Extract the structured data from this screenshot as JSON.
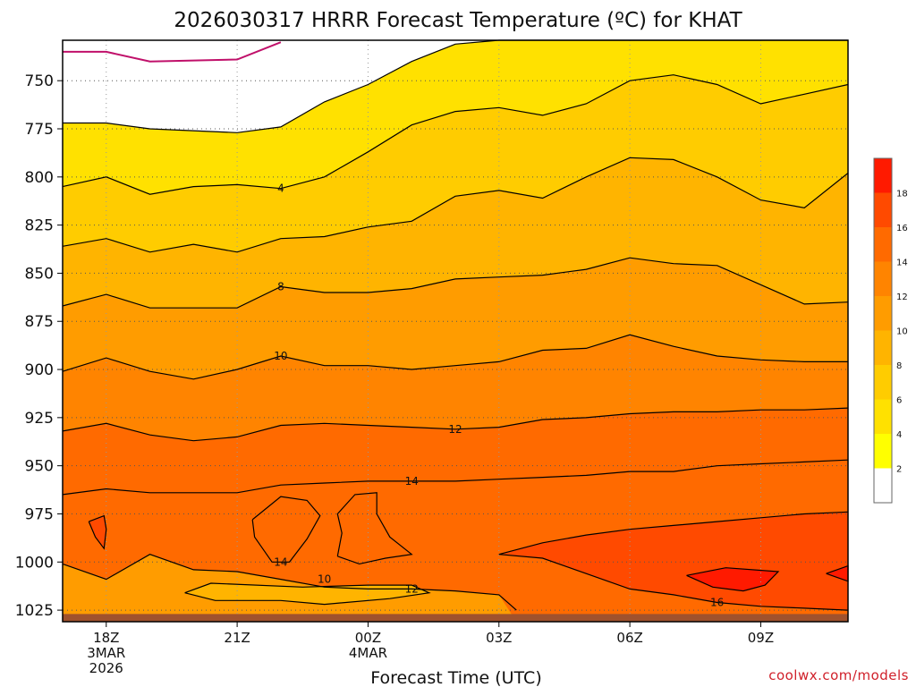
{
  "chart_data": {
    "type": "heatmap",
    "title": "2026030317 HRRR Forecast Temperature (ºC) for KHAT",
    "xlabel": "Forecast Time (UTC)",
    "ylabel": "",
    "credit": "coolwx.com/models",
    "x_ticks": [
      {
        "hour": 0,
        "lines": [
          "18Z",
          "3MAR",
          "2026"
        ]
      },
      {
        "hour": 3,
        "lines": [
          "21Z"
        ]
      },
      {
        "hour": 6,
        "lines": [
          "00Z",
          "4MAR"
        ]
      },
      {
        "hour": 9,
        "lines": [
          "03Z"
        ]
      },
      {
        "hour": 12,
        "lines": [
          "06Z"
        ]
      },
      {
        "hour": 15,
        "lines": [
          "09Z"
        ]
      }
    ],
    "x_range_hours": [
      -1,
      17
    ],
    "y_ticks": [
      750,
      775,
      800,
      825,
      850,
      875,
      900,
      925,
      950,
      975,
      1000,
      1025
    ],
    "y_range_hpa": [
      729,
      1031
    ],
    "surface_pressure_hpa": 1027,
    "grid": true,
    "colorbar": {
      "levels": [
        2,
        4,
        6,
        8,
        10,
        12,
        14,
        16,
        18
      ],
      "colors": [
        "#ffffff",
        "#ffff00",
        "#ffe100",
        "#ffcc00",
        "#ffb400",
        "#ff9c00",
        "#ff8400",
        "#ff6a00",
        "#ff4a00",
        "#ff1a00"
      ],
      "tick_labels": [
        "2",
        "4",
        "6",
        "8",
        "10",
        "12",
        "14",
        "16",
        "18"
      ]
    },
    "purple_contour": {
      "value": 0,
      "color": "#c0106a",
      "points": [
        [
          -1,
          735
        ],
        [
          0,
          735
        ],
        [
          1,
          740
        ],
        [
          3,
          739
        ],
        [
          4,
          730
        ]
      ]
    },
    "isotherms": [
      {
        "value": 2,
        "label": "",
        "points": [
          [
            -1,
            772
          ],
          [
            0,
            772
          ],
          [
            1,
            775
          ],
          [
            3,
            777
          ],
          [
            4,
            774
          ],
          [
            5,
            761
          ],
          [
            6,
            752
          ],
          [
            7,
            740
          ],
          [
            8,
            731
          ],
          [
            9,
            729
          ],
          [
            16,
            729
          ],
          [
            17,
            729
          ]
        ]
      },
      {
        "value": 4,
        "label": "4",
        "points": [
          [
            -1,
            805
          ],
          [
            0,
            800
          ],
          [
            1,
            809
          ],
          [
            2,
            805
          ],
          [
            3,
            804
          ],
          [
            4,
            806
          ],
          [
            5,
            800
          ],
          [
            6,
            787
          ],
          [
            7,
            773
          ],
          [
            8,
            766
          ],
          [
            9,
            764
          ],
          [
            10,
            768
          ],
          [
            11,
            762
          ],
          [
            12,
            750
          ],
          [
            13,
            747
          ],
          [
            14,
            752
          ],
          [
            15,
            762
          ],
          [
            16,
            757
          ],
          [
            17,
            752
          ]
        ],
        "label_at": [
          4,
          806
        ]
      },
      {
        "value": 6,
        "label": "",
        "points": [
          [
            -1,
            836
          ],
          [
            0,
            832
          ],
          [
            1,
            839
          ],
          [
            2,
            835
          ],
          [
            3,
            839
          ],
          [
            4,
            832
          ],
          [
            5,
            831
          ],
          [
            6,
            826
          ],
          [
            7,
            823
          ],
          [
            8,
            810
          ],
          [
            9,
            807
          ],
          [
            10,
            811
          ],
          [
            11,
            800
          ],
          [
            12,
            790
          ],
          [
            13,
            791
          ],
          [
            14,
            800
          ],
          [
            15,
            812
          ],
          [
            16,
            816
          ],
          [
            17,
            798
          ]
        ]
      },
      {
        "value": 8,
        "label": "8",
        "points": [
          [
            -1,
            867
          ],
          [
            0,
            861
          ],
          [
            1,
            868
          ],
          [
            3,
            868
          ],
          [
            4,
            857
          ],
          [
            5,
            860
          ],
          [
            6,
            860
          ],
          [
            7,
            858
          ],
          [
            8,
            853
          ],
          [
            9,
            852
          ],
          [
            10,
            851
          ],
          [
            11,
            848
          ],
          [
            12,
            842
          ],
          [
            13,
            845
          ],
          [
            14,
            846
          ],
          [
            15,
            856
          ],
          [
            16,
            866
          ],
          [
            17,
            865
          ]
        ],
        "label_at": [
          4,
          857
        ]
      },
      {
        "value": 10,
        "label": "10",
        "points": [
          [
            -1,
            901
          ],
          [
            0,
            894
          ],
          [
            1,
            901
          ],
          [
            2,
            905
          ],
          [
            3,
            900
          ],
          [
            4,
            893
          ],
          [
            5,
            898
          ],
          [
            6,
            898
          ],
          [
            7,
            900
          ],
          [
            8,
            898
          ],
          [
            9,
            896
          ],
          [
            10,
            890
          ],
          [
            11,
            889
          ],
          [
            12,
            882
          ],
          [
            13,
            888
          ],
          [
            14,
            893
          ],
          [
            15,
            895
          ],
          [
            16,
            896
          ],
          [
            17,
            896
          ]
        ],
        "label_at": [
          4,
          893
        ]
      },
      {
        "value": 12,
        "label": "12",
        "points": [
          [
            -1,
            932
          ],
          [
            0,
            928
          ],
          [
            1,
            934
          ],
          [
            2,
            937
          ],
          [
            3,
            935
          ],
          [
            4,
            929
          ],
          [
            5,
            928
          ],
          [
            6,
            929
          ],
          [
            7,
            930
          ],
          [
            8,
            931
          ],
          [
            9,
            930
          ],
          [
            10,
            926
          ],
          [
            11,
            925
          ],
          [
            12,
            923
          ],
          [
            13,
            922
          ],
          [
            14,
            922
          ],
          [
            15,
            921
          ],
          [
            16,
            921
          ],
          [
            17,
            920
          ]
        ],
        "label_at": [
          8,
          931
        ]
      },
      {
        "value": 14,
        "label": "14",
        "points": [
          [
            -1,
            965
          ],
          [
            0,
            962
          ],
          [
            1,
            964
          ],
          [
            3,
            964
          ],
          [
            4,
            960
          ],
          [
            5,
            959
          ],
          [
            6,
            958
          ],
          [
            7,
            958
          ],
          [
            8,
            958
          ],
          [
            9,
            957
          ],
          [
            10,
            956
          ],
          [
            11,
            955
          ],
          [
            12,
            953
          ],
          [
            13,
            953
          ],
          [
            14,
            950
          ],
          [
            15,
            949
          ],
          [
            16,
            948
          ],
          [
            17,
            947
          ]
        ],
        "label_at": [
          7,
          958
        ]
      },
      {
        "value": 12,
        "label": "12",
        "points": [
          [
            -1,
            1001
          ],
          [
            0,
            1009
          ],
          [
            1,
            996
          ],
          [
            2,
            1004
          ],
          [
            3,
            1005
          ],
          [
            4,
            1009
          ],
          [
            5,
            1013
          ],
          [
            6,
            1014
          ],
          [
            7,
            1014
          ],
          [
            8,
            1015
          ],
          [
            9,
            1017
          ],
          [
            9.4,
            1025
          ]
        ],
        "label_at": [
          7,
          1014
        ]
      },
      {
        "value": 16,
        "label": "",
        "points": [
          [
            9,
            996
          ],
          [
            10,
            990
          ],
          [
            11,
            986
          ],
          [
            12,
            983
          ],
          [
            13,
            981
          ],
          [
            14,
            979
          ],
          [
            15,
            977
          ],
          [
            16,
            975
          ],
          [
            17,
            974
          ]
        ]
      },
      {
        "value": 16,
        "label": "16",
        "points": [
          [
            9,
            996
          ],
          [
            10,
            998
          ],
          [
            11,
            1006
          ],
          [
            12,
            1014
          ],
          [
            13,
            1017
          ],
          [
            14,
            1021
          ],
          [
            15,
            1023
          ],
          [
            16,
            1024
          ],
          [
            17,
            1025
          ]
        ],
        "label_at": [
          14,
          1021
        ]
      }
    ],
    "closed_contours": [
      {
        "value": 16,
        "label": "",
        "points": [
          [
            -0.4,
            979
          ],
          [
            -0.05,
            976
          ],
          [
            0,
            983
          ],
          [
            -0.05,
            993
          ],
          [
            -0.25,
            987
          ],
          [
            -0.4,
            979
          ]
        ]
      },
      {
        "value": 14,
        "label": "14",
        "points": [
          [
            3.35,
            978
          ],
          [
            4.0,
            966
          ],
          [
            4.6,
            968
          ],
          [
            4.9,
            976
          ],
          [
            4.6,
            988
          ],
          [
            4.2,
            1000
          ],
          [
            3.8,
            1000
          ],
          [
            3.4,
            987
          ],
          [
            3.35,
            978
          ]
        ],
        "label_at": [
          4.0,
          1000
        ]
      },
      {
        "value": 14,
        "label": "",
        "points": [
          [
            5.3,
            997
          ],
          [
            5.4,
            985
          ],
          [
            5.3,
            975
          ],
          [
            5.7,
            965
          ],
          [
            6.2,
            964
          ],
          [
            6.2,
            975
          ],
          [
            6.5,
            987
          ],
          [
            7.0,
            996
          ],
          [
            6.4,
            998
          ],
          [
            5.8,
            1001
          ],
          [
            5.3,
            997
          ]
        ]
      },
      {
        "value": 10,
        "label": "10",
        "points": [
          [
            1.8,
            1016
          ],
          [
            2.4,
            1011
          ],
          [
            4.5,
            1013
          ],
          [
            6.0,
            1012
          ],
          [
            7.0,
            1012
          ],
          [
            7.4,
            1016
          ],
          [
            6.5,
            1019
          ],
          [
            5.0,
            1022
          ],
          [
            4.0,
            1020
          ],
          [
            2.5,
            1020
          ],
          [
            1.8,
            1016
          ]
        ],
        "label_at": [
          5.0,
          1009
        ]
      },
      {
        "value": 18,
        "label": "",
        "points": [
          [
            13.3,
            1007
          ],
          [
            14.2,
            1003
          ],
          [
            15.4,
            1005
          ],
          [
            15.1,
            1012
          ],
          [
            14.6,
            1015
          ],
          [
            13.9,
            1013
          ],
          [
            13.3,
            1007
          ]
        ]
      },
      {
        "value": 18,
        "label": "",
        "points": [
          [
            16.5,
            1006
          ],
          [
            17,
            1002
          ],
          [
            17,
            1010
          ],
          [
            16.5,
            1006
          ]
        ]
      }
    ]
  }
}
